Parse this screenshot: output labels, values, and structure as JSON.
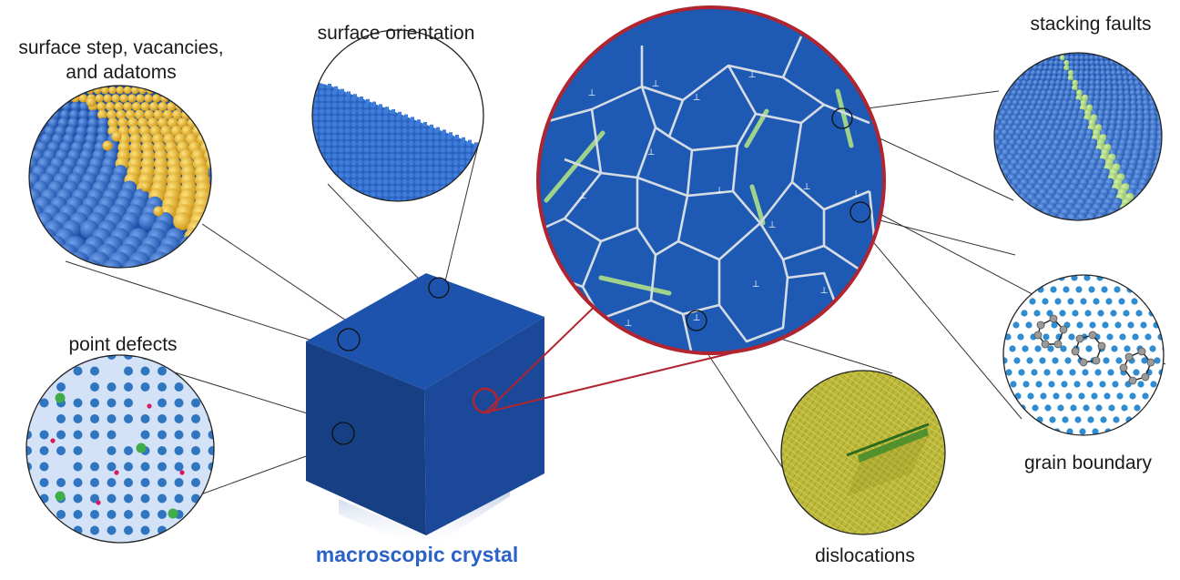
{
  "labels": {
    "surface_step": [
      "surface step, vacancies,",
      "and adatoms"
    ],
    "surface_orientation": "surface orientation",
    "point_defects": "point defects",
    "macroscopic_crystal": "macroscopic crystal",
    "stacking_faults": "stacking faults",
    "grain_boundary": "grain boundary",
    "dislocations": "dislocations"
  },
  "colors": {
    "crystal_blue": "#1a4d9e",
    "atom_blue": "#2b66c4",
    "adatom_yellow": "#e8b520",
    "grain_bg": "#1e59b3",
    "grain_boundary_line": "#d6dce4",
    "fault_green": "#9fd38c",
    "zoom_ring_red": "#b02530",
    "vacancy_bg": "#d3e2f6",
    "lattice_dot": "#2f75c0",
    "interstitial_red": "#d81b60",
    "substitution_green": "#3fae49",
    "dislocation_olive": "#b6b532",
    "label_blue": "#2a62c9"
  },
  "symbols": {
    "dislocation_marker": "⊥"
  }
}
